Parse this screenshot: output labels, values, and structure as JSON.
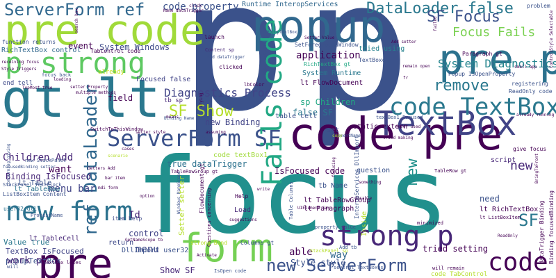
{
  "words": [
    {
      "text": "p",
      "color": "#3b528b"
    },
    {
      "text": "p",
      "color": "#3b528b"
    },
    {
      "text": "focus",
      "color": "#21908d"
    },
    {
      "text": "pre code",
      "color": "#a0da39"
    },
    {
      "text": "gt lt",
      "color": "#2a788e"
    },
    {
      "text": "code pre",
      "color": "#440154"
    },
    {
      "text": "popup",
      "color": "#31688e"
    },
    {
      "text": "pre p",
      "color": "#2c728e"
    },
    {
      "text": "TextBox",
      "color": "#414487"
    },
    {
      "text": "p strong",
      "color": "#5ec962"
    },
    {
      "text": "code TextBox",
      "color": "#2a788e"
    },
    {
      "text": "ServerForm SF",
      "color": "#3b528b"
    },
    {
      "text": "pre",
      "color": "#440154"
    },
    {
      "text": "form",
      "color": "#75d054"
    },
    {
      "text": "new form",
      "color": "#2c728e"
    },
    {
      "text": "strong p",
      "color": "#482878"
    },
    {
      "text": "Fails code",
      "color": "#22a884"
    },
    {
      "text": "ServerForm ref",
      "color": "#31688e"
    },
    {
      "text": "code",
      "color": "#440154"
    },
    {
      "text": "DataLoader false",
      "color": "#2a788e"
    },
    {
      "text": "SF Focus",
      "color": "#3b528b"
    },
    {
      "text": "new ServerForm",
      "color": "#3b528b"
    },
    {
      "text": "ref DataLoader",
      "color": "#31688e"
    },
    {
      "text": "Focus Fails",
      "color": "#7ad151"
    },
    {
      "text": "remove",
      "color": "#2a788e"
    },
    {
      "text": "SF Show",
      "color": "#b5de2b"
    },
    {
      "text": "new",
      "color": "#21918c"
    },
    {
      "text": "SF",
      "color": "#2a788e"
    },
    {
      "text": "Diagnostics Process",
      "color": "#414487"
    },
    {
      "text": "code property",
      "color": "#3b528b"
    },
    {
      "text": "Runtime InteropServices",
      "color": "#31688e"
    },
    {
      "text": "System Diagnostics",
      "color": "#25858e"
    },
    {
      "text": "application",
      "color": "#440154"
    },
    {
      "text": "event",
      "color": "#440154"
    },
    {
      "text": "System Windows",
      "color": "#3e4a89"
    },
    {
      "text": "RichTextBox control",
      "color": "#31688e"
    },
    {
      "text": "tried using",
      "color": "#26828e"
    },
    {
      "text": "Children Add",
      "color": "#482878"
    },
    {
      "text": "menu bar",
      "color": "#414487"
    },
    {
      "text": "want",
      "color": "#440154"
    },
    {
      "text": "IsFocused code",
      "color": "#440154"
    },
    {
      "text": "true dataTrigger",
      "color": "#2c728e"
    },
    {
      "text": "TextBox IsFocused",
      "color": "#414487"
    },
    {
      "text": "popupTextBox",
      "color": "#3b528b"
    },
    {
      "text": "Show SF",
      "color": "#482878"
    },
    {
      "text": "menu",
      "color": "#3e4a89"
    },
    {
      "text": "control",
      "color": "#414487"
    },
    {
      "text": "Value true",
      "color": "#2a788e"
    },
    {
      "text": "work p",
      "color": "#482878"
    },
    {
      "text": "way",
      "color": "#31688e"
    },
    {
      "text": "able",
      "color": "#440154"
    },
    {
      "text": "Style style",
      "color": "#3b528b"
    },
    {
      "text": "tried setting",
      "color": "#440154"
    },
    {
      "text": "Binding IsFocused",
      "color": "#482878"
    },
    {
      "text": "new Binding",
      "color": "#414487"
    },
    {
      "text": "sp Children",
      "color": "#22a884"
    },
    {
      "text": "false SF",
      "color": "#2a788e"
    },
    {
      "text": "static extern",
      "color": "#440154"
    },
    {
      "text": "set",
      "color": "#3e4a89"
    },
    {
      "text": "field",
      "color": "#440154"
    },
    {
      "text": "Id",
      "color": "#482878"
    },
    {
      "text": "need",
      "color": "#3b528b"
    },
    {
      "text": "lt RichTextBox",
      "color": "#440154"
    },
    {
      "text": "script",
      "color": "#482878"
    },
    {
      "text": "question",
      "color": "#3b528b"
    },
    {
      "text": "return",
      "color": "#3e4a89"
    },
    {
      "text": "DllImport user32",
      "color": "#3b528b"
    },
    {
      "text": "code textBox1",
      "color": "#a0da39"
    },
    {
      "text": "Focused false",
      "color": "#414487"
    },
    {
      "text": "System Runtime",
      "color": "#2a788e"
    },
    {
      "text": "lt FlowDocument",
      "color": "#440154"
    },
    {
      "text": "table cell",
      "color": "#3b528b"
    },
    {
      "text": "lt TableRowGroup",
      "color": "#440154"
    },
    {
      "text": "tb Name",
      "color": "#3b528b"
    },
    {
      "text": "lt Paragraph",
      "color": "#440154"
    },
    {
      "text": "lt TableCell",
      "color": "#482878"
    },
    {
      "text": "lt TableRow",
      "color": "#2c728e"
    },
    {
      "text": "lt Table",
      "color": "#3b528b"
    },
    {
      "text": "Load",
      "color": "#482878"
    },
    {
      "text": "Help",
      "color": "#440154"
    },
    {
      "text": "tb sp",
      "color": "#482878"
    },
    {
      "text": "clicked",
      "color": "#440154"
    },
    {
      "text": "launch",
      "color": "#440154"
    },
    {
      "text": "SetForegroundWindow",
      "color": "#3b528b"
    },
    {
      "text": "TextBoxes",
      "color": "#3b528b"
    },
    {
      "text": "RichTextBox gt",
      "color": "#22a884"
    },
    {
      "text": "Content sp",
      "color": "#482878"
    },
    {
      "text": "function returns",
      "color": "#3b528b"
    },
    {
      "text": "TabControl code",
      "color": "#440154"
    },
    {
      "text": "focus back",
      "color": "#3b528b"
    },
    {
      "text": "lbColor",
      "color": "#440154"
    },
    {
      "text": "already",
      "color": "#c8e020"
    },
    {
      "text": "end tell",
      "color": "#3e4a89"
    },
    {
      "text": "textBox1 Focused",
      "color": "#3b528b"
    },
    {
      "text": "Popup IsOpenProperty",
      "color": "#3b528b"
    },
    {
      "text": "ReadOnly code",
      "color": "#3b528b"
    },
    {
      "text": "give focus",
      "color": "#440154"
    },
    {
      "text": "registering",
      "color": "#3b528b"
    },
    {
      "text": "Paragraph gt",
      "color": "#440154"
    },
    {
      "text": "problem",
      "color": "#3b528b"
    },
    {
      "text": "code TabControl",
      "color": "#b5de2b"
    },
    {
      "text": "Binding focusedBinding",
      "color": "#440154"
    },
    {
      "text": "dataTrigger Binding",
      "color": "#440154"
    },
    {
      "text": "several TextBoxes",
      "color": "#3b528b"
    },
    {
      "text": "minimized",
      "color": "#440154"
    },
    {
      "text": "property value",
      "color": "#3b528b"
    },
    {
      "text": "Questions concerning",
      "color": "#440154"
    },
    {
      "text": "Columns gt",
      "color": "#3b528b"
    },
    {
      "text": "strong Bind",
      "color": "#b5de2b"
    },
    {
      "text": "item Help",
      "color": "#3e4a89"
    },
    {
      "text": "user32 dll",
      "color": "#2c728e"
    },
    {
      "text": "ListBoxItem Content",
      "color": "#3b528b"
    },
    {
      "text": "StackPanel TextBlock",
      "color": "#3b528b"
    },
    {
      "text": "new StackPanel",
      "color": "#3b528b"
    },
    {
      "text": "ProcessName",
      "color": "#3b528b"
    },
    {
      "text": "will",
      "color": "#3b528b"
    },
    {
      "text": "textbox loses",
      "color": "#440154"
    },
    {
      "text": "concerning giving",
      "color": "#3b528b"
    },
    {
      "text": "focusedBinding setter",
      "color": "#3b528b"
    },
    {
      "text": "TableRowGroup gt",
      "color": "#440154"
    },
    {
      "text": "Windows NameScope",
      "color": "#3b528b"
    },
    {
      "text": "FlowDocument gt",
      "color": "#440154"
    },
    {
      "text": "Table Columns",
      "color": "#3b528b"
    },
    {
      "text": "Setter setter",
      "color": "#b5de2b"
    },
    {
      "text": "lt ListBoxItem",
      "color": "#440154"
    },
    {
      "text": "TableRow gt",
      "color": "#440154"
    },
    {
      "text": "Inside",
      "color": "#b5de2b"
    },
    {
      "text": "InteropServices DllImport",
      "color": "#3b528b"
    },
    {
      "text": "will remain",
      "color": "#440154"
    },
    {
      "text": "GetNameScope tb",
      "color": "#440154"
    },
    {
      "text": "StackPanel sp",
      "color": "#b5de2b"
    },
    {
      "text": "Add tb",
      "color": "#3b528b"
    },
    {
      "text": "SwitchToThisWindow",
      "color": "#440154"
    },
    {
      "text": "TopMost true",
      "color": "#440154"
    },
    {
      "text": "setter Property",
      "color": "#440154"
    },
    {
      "text": "Setter Value",
      "color": "#440154"
    },
    {
      "text": "ElementName",
      "color": "#3b528b"
    },
    {
      "text": "UIElement Say",
      "color": "#440154"
    },
    {
      "text": "focusing",
      "color": "#440154"
    },
    {
      "text": "disable",
      "color": "#440154"
    },
    {
      "text": "something",
      "color": "#440154"
    },
    {
      "text": "Add setter",
      "color": "#440154"
    },
    {
      "text": "remain open",
      "color": "#440154"
    },
    {
      "text": "small app",
      "color": "#440154"
    },
    {
      "text": "failed",
      "color": "#440154"
    },
    {
      "text": "means",
      "color": "#440154"
    },
    {
      "text": "assuming",
      "color": "#440154"
    },
    {
      "text": "trying",
      "color": "#440154"
    },
    {
      "text": "copy",
      "color": "#b5de2b"
    },
    {
      "text": "suggestions",
      "color": "#440154"
    },
    {
      "text": "option",
      "color": "#440154"
    },
    {
      "text": "scenario",
      "color": "#b5de2b"
    },
    {
      "text": "mdi form",
      "color": "#440154"
    },
    {
      "text": "bar item",
      "color": "#440154"
    },
    {
      "text": "loading",
      "color": "#440154"
    },
    {
      "text": "click",
      "color": "#440154"
    },
    {
      "text": "write",
      "color": "#440154"
    },
    {
      "text": "cases",
      "color": "#440154"
    },
    {
      "text": "Activate",
      "color": "#440154"
    },
    {
      "text": "receiving focus",
      "color": "#440154"
    },
    {
      "text": "Style Triggers",
      "color": "#440154"
    },
    {
      "text": "Name dataTrigger",
      "color": "#440154"
    },
    {
      "text": "search box",
      "color": "#440154"
    },
    {
      "text": "multiple methods",
      "color": "#440154"
    },
    {
      "text": "setter style",
      "color": "#440154"
    },
    {
      "text": "never used",
      "color": "#440154"
    },
    {
      "text": "ControlStyle Selectable",
      "color": "#440154"
    },
    {
      "text": "already running",
      "color": "#440154"
    },
    {
      "text": "BringToFront",
      "color": "#440154"
    },
    {
      "text": "ReadOnly",
      "color": "#440154"
    },
    {
      "text": "IsOpen code",
      "color": "#3b528b"
    },
    {
      "text": "Getters Add",
      "color": "#440154"
    },
    {
      "text": "Popup IsOpen",
      "color": "#3b528b"
    },
    {
      "text": "Add dataTrigger",
      "color": "#3b528b"
    },
    {
      "text": "Binding Name",
      "color": "#3b528b"
    },
    {
      "text": "tried making",
      "color": "#440154"
    },
    {
      "text": "new",
      "color": "#482878"
    },
    {
      "text": "PopupTextBox",
      "color": "#3b528b"
    },
    {
      "text": "fr",
      "color": "#440154"
    }
  ]
}
